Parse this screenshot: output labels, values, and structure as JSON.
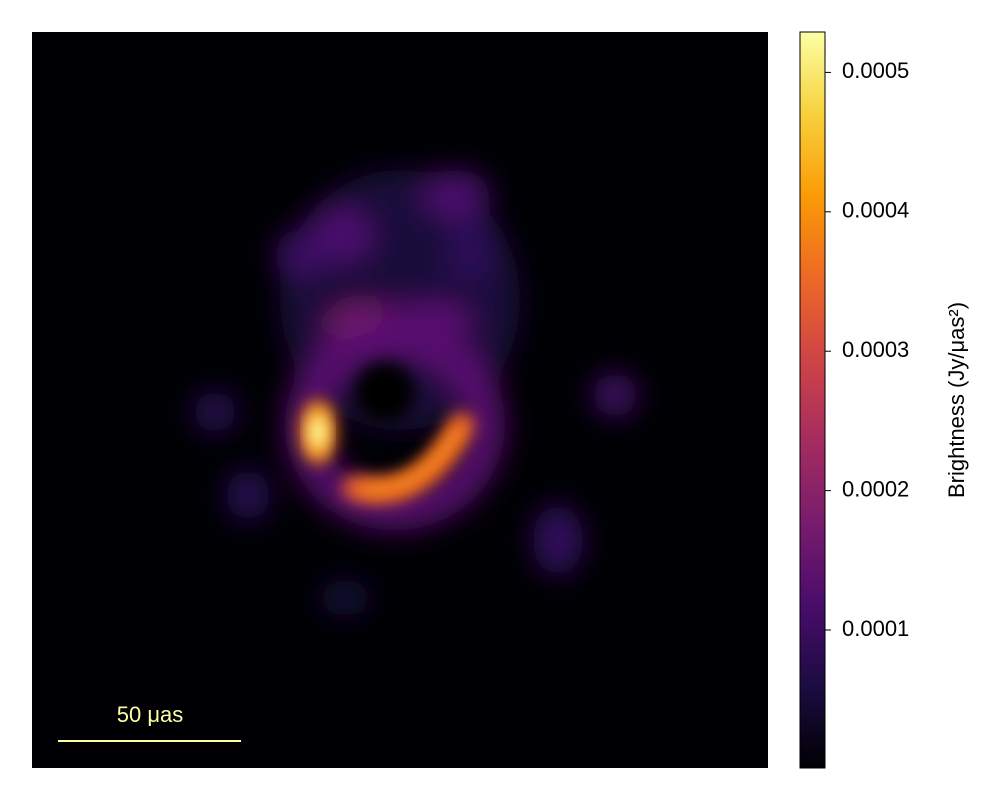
{
  "chart_data": {
    "type": "image",
    "colormap": "inferno",
    "scale_bar_label": "50 μas",
    "colorbar": {
      "label": "Brightness (Jy/μas²)",
      "lim": [
        1e-06,
        0.000529
      ],
      "ticks": [
        0.0001,
        0.0002,
        0.0003,
        0.0004,
        0.0005
      ]
    }
  }
}
